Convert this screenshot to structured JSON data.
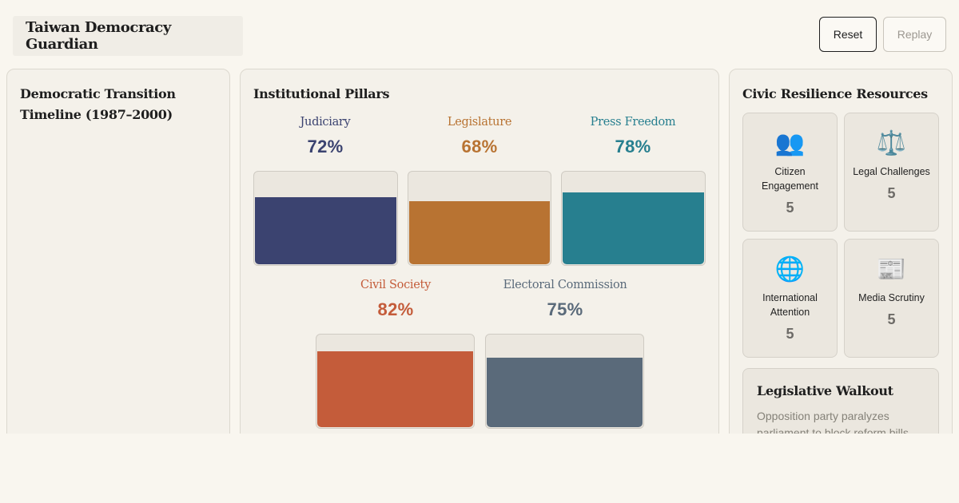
{
  "header": {
    "title": "Taiwan Democracy Guardian",
    "reset_label": "Reset",
    "replay_label": "Replay"
  },
  "timeline": {
    "title": "Democratic Transition Timeline (1987–2000)"
  },
  "pillars": {
    "title": "Institutional Pillars",
    "items": [
      {
        "name": "Judiciary",
        "value_label": "72%",
        "value": 72,
        "color": "#3b4370"
      },
      {
        "name": "Legislature",
        "value_label": "68%",
        "value": 68,
        "color": "#b87332"
      },
      {
        "name": "Press Freedom",
        "value_label": "78%",
        "value": 78,
        "color": "#277f8f"
      },
      {
        "name": "Civil Society",
        "value_label": "82%",
        "value": 82,
        "color": "#c45c3a"
      },
      {
        "name": "Electoral Commission",
        "value_label": "75%",
        "value": 75,
        "color": "#5a6a7a"
      }
    ]
  },
  "civic": {
    "title": "Civic Resilience Resources",
    "resources": [
      {
        "icon": "people-icon",
        "glyph": "👥",
        "name": "Citizen Engagement",
        "count": "5"
      },
      {
        "icon": "scales-icon",
        "glyph": "⚖️",
        "name": "Legal Challenges",
        "count": "5"
      },
      {
        "icon": "globe-icon",
        "glyph": "🌐",
        "name": "International Attention",
        "count": "5"
      },
      {
        "icon": "newspaper-icon",
        "glyph": "📰",
        "name": "Media Scrutiny",
        "count": "5"
      }
    ],
    "event": {
      "title": "Legislative Walkout",
      "description": "Opposition party paralyzes parliament to block reform bills."
    }
  }
}
